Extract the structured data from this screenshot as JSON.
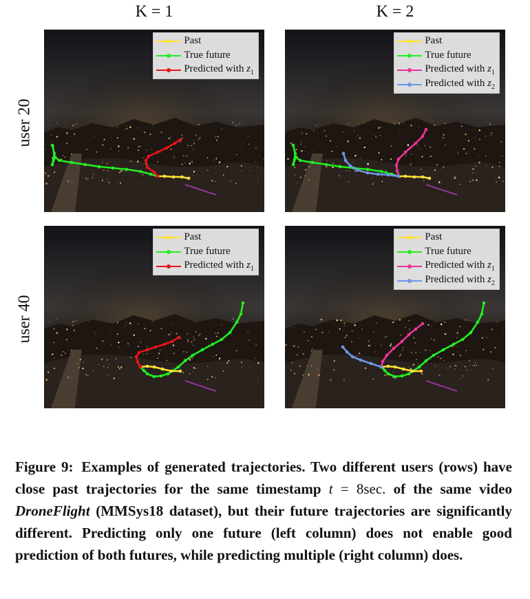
{
  "columns": [
    {
      "id": "k1",
      "title": "K = 1"
    },
    {
      "id": "k2",
      "title": "K = 2"
    }
  ],
  "rows": [
    {
      "id": "u20",
      "label": "user 20"
    },
    {
      "id": "u40",
      "label": "user 40"
    }
  ],
  "legend": {
    "past": "Past",
    "true_future": "True future",
    "pred1_prefix": "Predicted with ",
    "pred2_prefix": "Predicted with ",
    "z_symbol": "z",
    "sub1": "1",
    "sub2": "2"
  },
  "colors": {
    "past": "#ffe135",
    "true_future": "#22ee22",
    "pred_k1": "#e8141c",
    "pred_z1": "#ee3399",
    "pred_z2": "#6f97e8"
  },
  "caption": {
    "label": "Figure 9:",
    "part1": "Examples of generated trajectories. Two different users (rows) have close past trajectories for the same timestamp",
    "t_var": "t",
    "t_value": "= 8sec.",
    "part2": "of the same video",
    "video_name": "DroneFlight",
    "part3": "(MMSys18 dataset), but their future trajectories are significantly different. Predicting only one future (left column) does not enable good prediction of both futures, while predicting multiple (right column) does."
  }
}
